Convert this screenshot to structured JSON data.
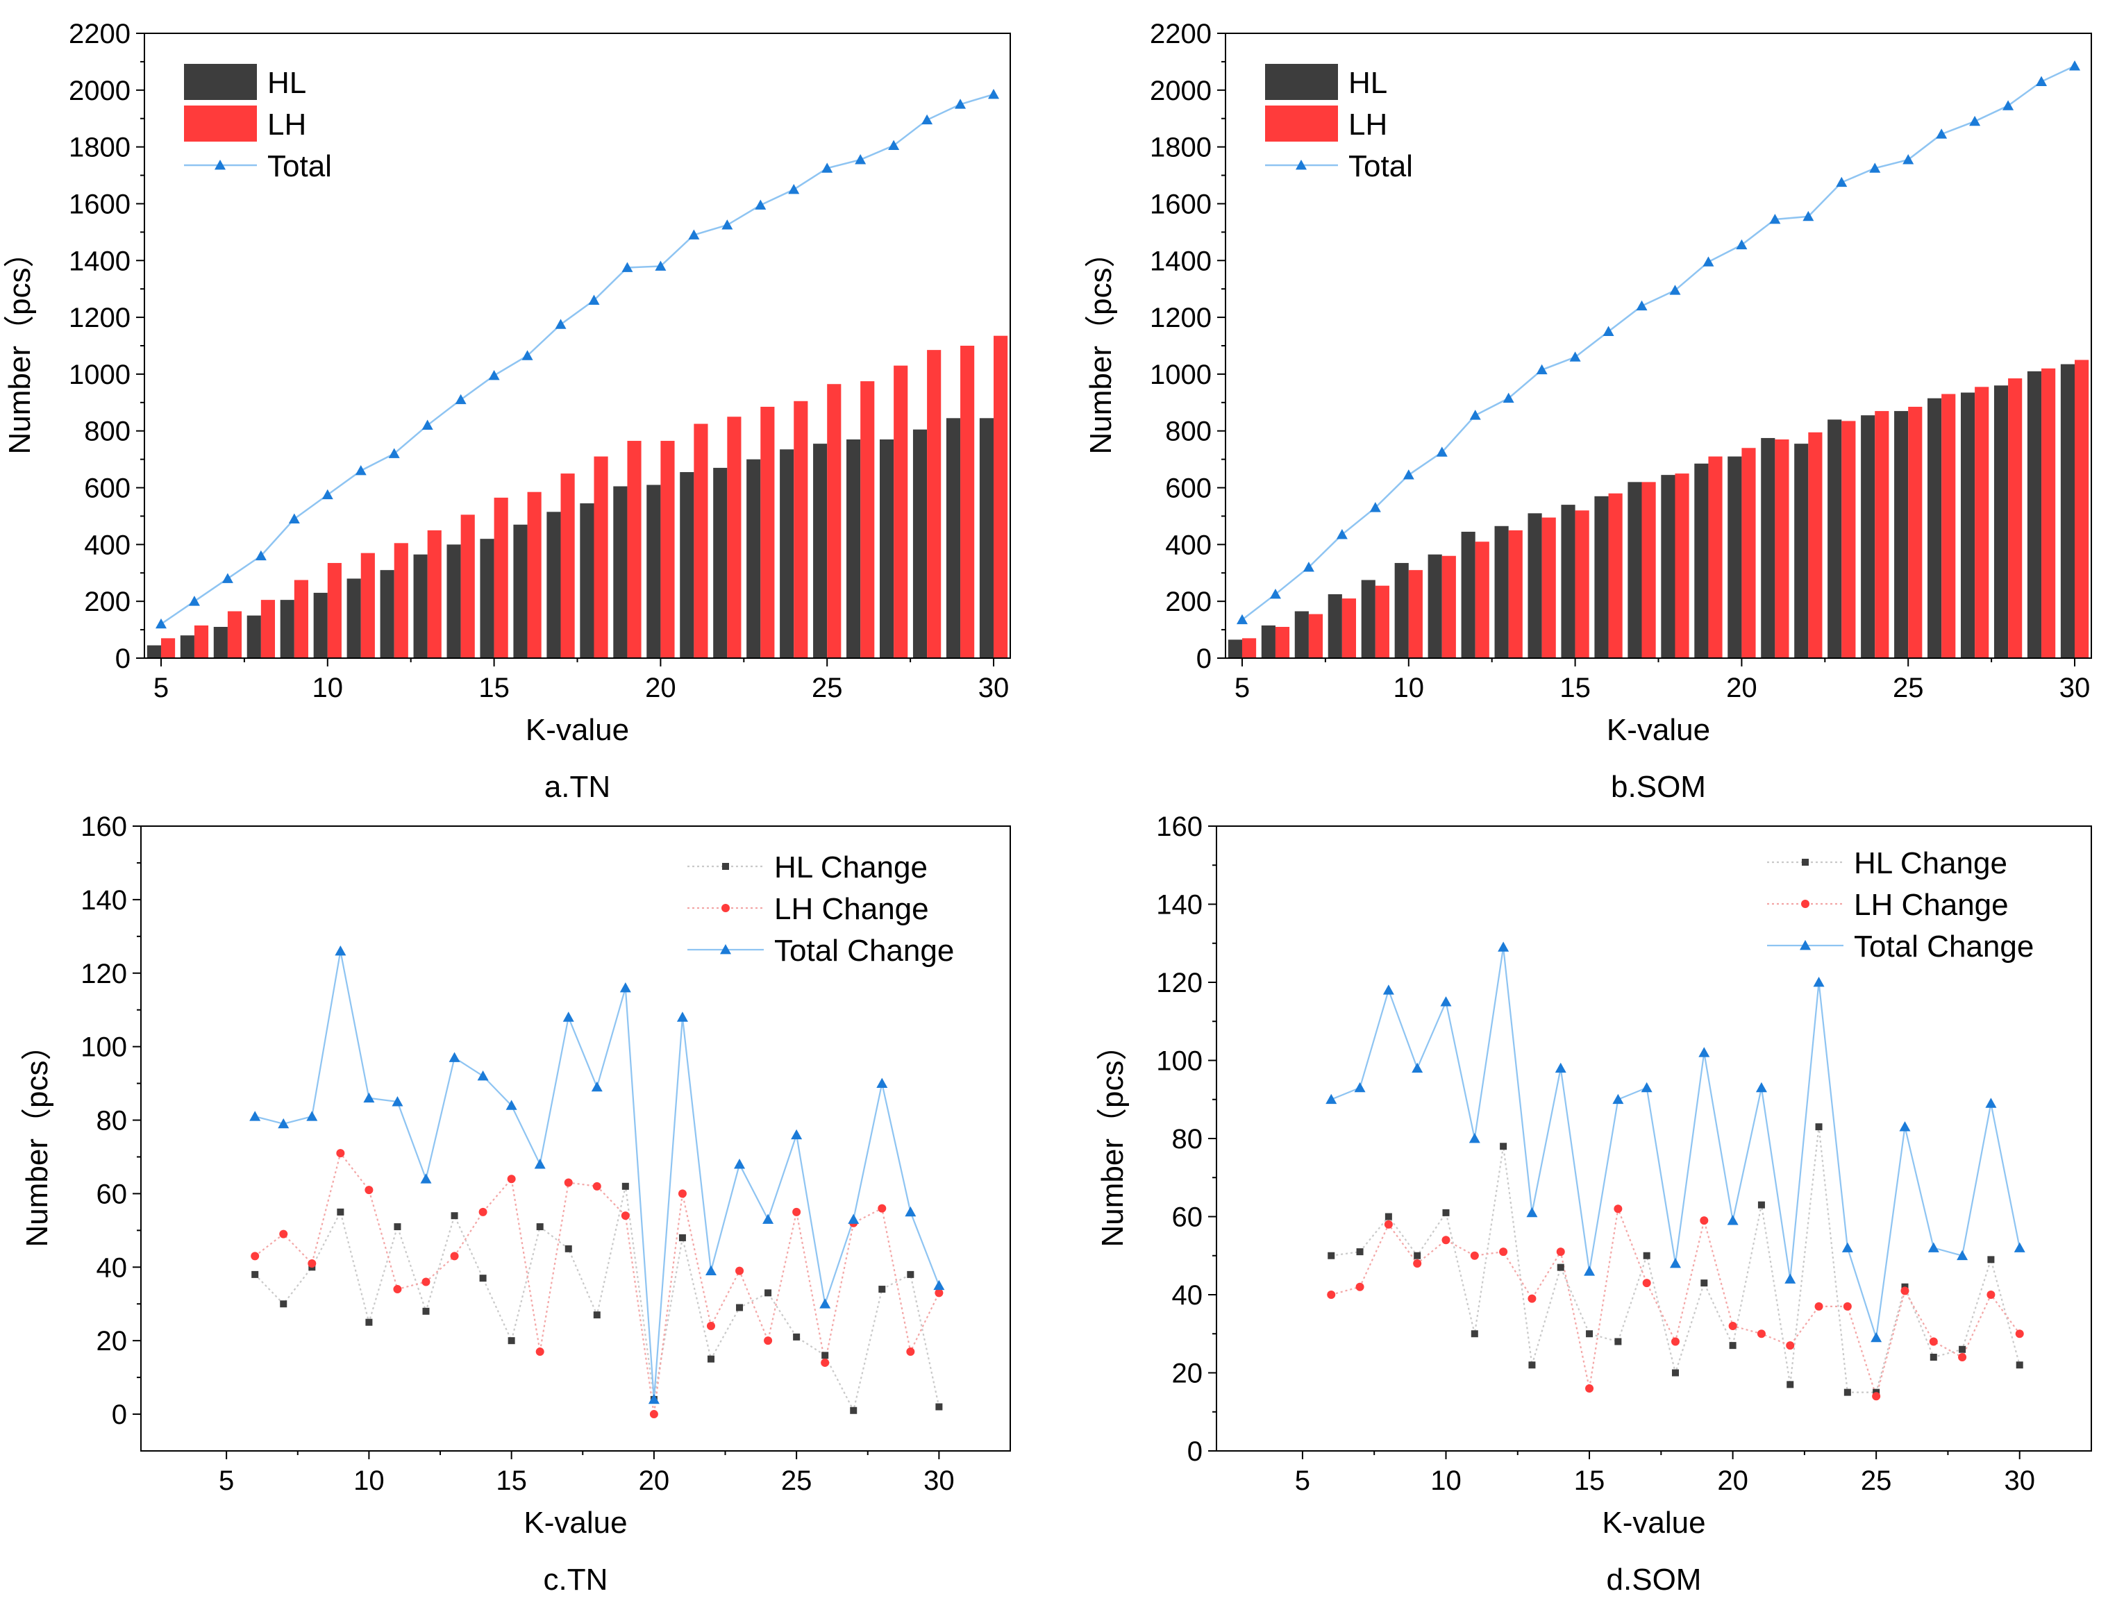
{
  "colors": {
    "hl": "#3d3d3d",
    "lh": "#ff3b3b",
    "total": "#1b7bd8",
    "total_line": "#8ec4f2",
    "hl_dotted": "#c9c9c9",
    "lh_dotted": "#f3a6a6",
    "axis": "#000000"
  },
  "chart_data": [
    {
      "id": "a",
      "type": "bar",
      "caption": "a.TN",
      "xlabel": "K-value",
      "ylabel": "Number（pcs）",
      "xlim": [
        4.5,
        30.5
      ],
      "ylim": [
        0,
        2200
      ],
      "xticks": [
        5,
        10,
        15,
        20,
        25,
        30
      ],
      "yticks": [
        0,
        200,
        400,
        600,
        800,
        1000,
        1200,
        1400,
        1600,
        1800,
        2000,
        2200
      ],
      "legend_position": "top-left",
      "x": [
        5,
        6,
        7,
        8,
        9,
        10,
        11,
        12,
        13,
        14,
        15,
        16,
        17,
        18,
        19,
        20,
        21,
        22,
        23,
        24,
        25,
        26,
        27,
        28,
        29,
        30
      ],
      "series": [
        {
          "name": "HL",
          "kind": "bar",
          "values": [
            45,
            80,
            110,
            150,
            205,
            230,
            280,
            310,
            365,
            400,
            420,
            470,
            515,
            545,
            605,
            610,
            655,
            670,
            700,
            735,
            755,
            770,
            770,
            805,
            845,
            845
          ]
        },
        {
          "name": "LH",
          "kind": "bar",
          "values": [
            70,
            115,
            165,
            205,
            275,
            335,
            370,
            405,
            450,
            505,
            565,
            585,
            650,
            710,
            765,
            765,
            825,
            850,
            885,
            905,
            965,
            975,
            1030,
            1085,
            1100,
            1135
          ]
        },
        {
          "name": "Total",
          "kind": "line",
          "values": [
            120,
            200,
            280,
            360,
            490,
            575,
            660,
            720,
            820,
            910,
            995,
            1065,
            1175,
            1260,
            1375,
            1380,
            1490,
            1525,
            1595,
            1650,
            1725,
            1755,
            1805,
            1895,
            1950,
            1985
          ]
        }
      ]
    },
    {
      "id": "b",
      "type": "bar",
      "caption": "b.SOM",
      "xlabel": "K-value",
      "ylabel": "Number（pcs）",
      "xlim": [
        4.5,
        30.5
      ],
      "ylim": [
        0,
        2200
      ],
      "xticks": [
        5,
        10,
        15,
        20,
        25,
        30
      ],
      "yticks": [
        0,
        200,
        400,
        600,
        800,
        1000,
        1200,
        1400,
        1600,
        1800,
        2000,
        2200
      ],
      "legend_position": "top-left",
      "x": [
        5,
        6,
        7,
        8,
        9,
        10,
        11,
        12,
        13,
        14,
        15,
        16,
        17,
        18,
        19,
        20,
        21,
        22,
        23,
        24,
        25,
        26,
        27,
        28,
        29,
        30
      ],
      "series": [
        {
          "name": "HL",
          "kind": "bar",
          "values": [
            65,
            115,
            165,
            225,
            275,
            335,
            365,
            445,
            465,
            510,
            540,
            570,
            620,
            645,
            685,
            710,
            775,
            755,
            840,
            855,
            870,
            915,
            935,
            960,
            1010,
            1035
          ]
        },
        {
          "name": "LH",
          "kind": "bar",
          "values": [
            70,
            110,
            155,
            210,
            255,
            310,
            360,
            410,
            450,
            495,
            520,
            580,
            620,
            650,
            710,
            740,
            770,
            795,
            835,
            870,
            885,
            930,
            955,
            985,
            1020,
            1050
          ]
        },
        {
          "name": "Total",
          "kind": "line",
          "values": [
            135,
            225,
            320,
            435,
            530,
            645,
            725,
            855,
            915,
            1015,
            1060,
            1150,
            1240,
            1295,
            1395,
            1455,
            1545,
            1555,
            1675,
            1725,
            1755,
            1845,
            1890,
            1945,
            2030,
            2085
          ]
        }
      ]
    },
    {
      "id": "c",
      "type": "line",
      "caption": "c.TN",
      "xlabel": "K-value",
      "ylabel": "Number（pcs）",
      "xlim": [
        2,
        32.5
      ],
      "ylim": [
        -10,
        160
      ],
      "xticks": [
        5,
        10,
        15,
        20,
        25,
        30
      ],
      "yticks": [
        0,
        20,
        40,
        60,
        80,
        100,
        120,
        140,
        160
      ],
      "legend_position": "top-right",
      "x": [
        6,
        7,
        8,
        9,
        10,
        11,
        12,
        13,
        14,
        15,
        16,
        17,
        18,
        19,
        20,
        21,
        22,
        23,
        24,
        25,
        26,
        27,
        28,
        29,
        30
      ],
      "series": [
        {
          "name": "HL Change",
          "kind": "dotted",
          "values": [
            38,
            30,
            40,
            55,
            25,
            51,
            28,
            54,
            37,
            20,
            51,
            45,
            27,
            62,
            4,
            48,
            15,
            29,
            33,
            21,
            16,
            1,
            34,
            38,
            2
          ]
        },
        {
          "name": "LH Change",
          "kind": "dotted",
          "values": [
            43,
            49,
            41,
            71,
            61,
            34,
            36,
            43,
            55,
            64,
            17,
            63,
            62,
            54,
            0,
            60,
            24,
            39,
            20,
            55,
            14,
            52,
            56,
            17,
            33
          ]
        },
        {
          "name": "Total Change",
          "kind": "line",
          "values": [
            81,
            79,
            81,
            126,
            86,
            85,
            64,
            97,
            92,
            84,
            68,
            108,
            89,
            116,
            4,
            108,
            39,
            68,
            53,
            76,
            30,
            53,
            90,
            55,
            35
          ]
        }
      ]
    },
    {
      "id": "d",
      "type": "line",
      "caption": "d.SOM",
      "xlabel": "K-value",
      "ylabel": "Number（pcs）",
      "xlim": [
        2,
        32.5
      ],
      "ylim": [
        0,
        160
      ],
      "xticks": [
        5,
        10,
        15,
        20,
        25,
        30
      ],
      "yticks": [
        0,
        20,
        40,
        60,
        80,
        100,
        120,
        140,
        160
      ],
      "legend_position": "top-right",
      "x": [
        6,
        7,
        8,
        9,
        10,
        11,
        12,
        13,
        14,
        15,
        16,
        17,
        18,
        19,
        20,
        21,
        22,
        23,
        24,
        25,
        26,
        27,
        28,
        29,
        30
      ],
      "series": [
        {
          "name": "HL Change",
          "kind": "dotted",
          "values": [
            50,
            51,
            60,
            50,
            61,
            30,
            78,
            22,
            47,
            30,
            28,
            50,
            20,
            43,
            27,
            63,
            17,
            83,
            15,
            15,
            42,
            24,
            26,
            49,
            22
          ]
        },
        {
          "name": "LH Change",
          "kind": "dotted",
          "values": [
            40,
            42,
            58,
            48,
            54,
            50,
            51,
            39,
            51,
            16,
            62,
            43,
            28,
            59,
            32,
            30,
            27,
            37,
            37,
            14,
            41,
            28,
            24,
            40,
            30
          ]
        },
        {
          "name": "Total Change",
          "kind": "line",
          "values": [
            90,
            93,
            118,
            98,
            115,
            80,
            129,
            61,
            98,
            46,
            90,
            93,
            48,
            102,
            59,
            93,
            44,
            120,
            52,
            29,
            83,
            52,
            50,
            89,
            52
          ]
        }
      ]
    }
  ]
}
